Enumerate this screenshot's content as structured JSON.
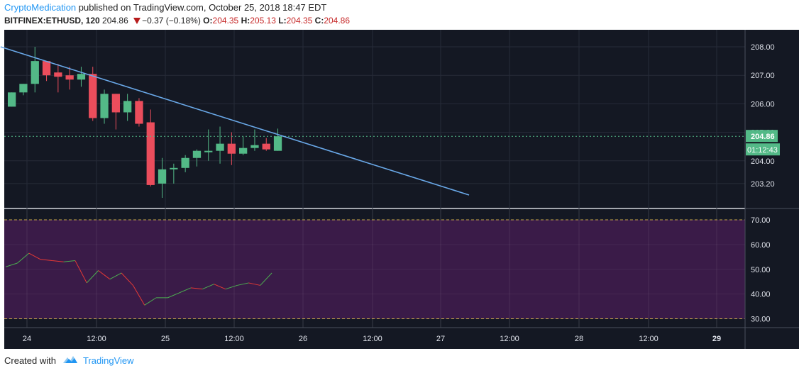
{
  "header": {
    "author": "CryptoMedication",
    "published_text": "published on TradingView.com, October 25, 2018 18:47 EDT",
    "symbol": "BITFINEX:ETHUSD, 120",
    "last": "204.86",
    "change": "−0.37 (−0.18%)",
    "o_label": "O:",
    "o_value": "204.35",
    "h_label": "H:",
    "h_value": "205.13",
    "l_label": "L:",
    "l_value": "204.35",
    "c_label": "C:",
    "c_value": "204.86"
  },
  "footer": {
    "created_with": "Created with",
    "brand": "TradingView"
  },
  "colors": {
    "background": "#141823",
    "up": "#53b987",
    "down": "#eb4d5c",
    "trendline": "#6aa9e9",
    "rsi_band": "#3a1b48",
    "rsi_line_up": "#4caf50",
    "rsi_line_down": "#e53935",
    "price_tag": "#53b987"
  },
  "chart_data": [
    {
      "type": "candlestick",
      "y_axis_ticks": [
        "208.00",
        "207.00",
        "206.00",
        "205.00",
        "204.00",
        "203.20"
      ],
      "ylim": [
        202.6,
        208.2
      ],
      "current_price_label": "204.86",
      "countdown_label": "01:12:43",
      "x_tick_labels": [
        "24",
        "12:00",
        "25",
        "12:00",
        "26",
        "12:00",
        "27",
        "12:00",
        "28",
        "12:00",
        "29"
      ],
      "x_tick_bold": [
        false,
        false,
        false,
        false,
        false,
        false,
        false,
        false,
        false,
        false,
        true
      ],
      "candles": [
        {
          "o": 205.9,
          "h": 206.4,
          "l": 205.9,
          "c": 206.4
        },
        {
          "o": 206.4,
          "h": 206.7,
          "l": 206.3,
          "c": 206.7
        },
        {
          "o": 206.7,
          "h": 208.0,
          "l": 206.4,
          "c": 207.5
        },
        {
          "o": 207.5,
          "h": 207.5,
          "l": 206.8,
          "c": 207.0
        },
        {
          "o": 207.1,
          "h": 207.4,
          "l": 206.4,
          "c": 206.95
        },
        {
          "o": 207.0,
          "h": 207.3,
          "l": 206.5,
          "c": 206.85
        },
        {
          "o": 206.85,
          "h": 207.3,
          "l": 206.6,
          "c": 207.05
        },
        {
          "o": 207.05,
          "h": 207.3,
          "l": 205.4,
          "c": 205.5
        },
        {
          "o": 205.5,
          "h": 206.5,
          "l": 205.3,
          "c": 206.35
        },
        {
          "o": 206.35,
          "h": 206.35,
          "l": 205.1,
          "c": 205.7
        },
        {
          "o": 205.7,
          "h": 206.35,
          "l": 205.4,
          "c": 206.1
        },
        {
          "o": 206.1,
          "h": 206.2,
          "l": 205.2,
          "c": 205.3
        },
        {
          "o": 205.35,
          "h": 205.8,
          "l": 203.1,
          "c": 203.15
        },
        {
          "o": 203.2,
          "h": 204.1,
          "l": 202.7,
          "c": 203.7
        },
        {
          "o": 203.7,
          "h": 203.9,
          "l": 203.2,
          "c": 203.75
        },
        {
          "o": 203.75,
          "h": 204.2,
          "l": 203.6,
          "c": 204.1
        },
        {
          "o": 204.1,
          "h": 204.4,
          "l": 203.8,
          "c": 204.35
        },
        {
          "o": 204.35,
          "h": 205.1,
          "l": 204.0,
          "c": 204.35
        },
        {
          "o": 204.35,
          "h": 205.2,
          "l": 203.9,
          "c": 204.6
        },
        {
          "o": 204.6,
          "h": 205.0,
          "l": 203.85,
          "c": 204.25
        },
        {
          "o": 204.25,
          "h": 204.85,
          "l": 204.2,
          "c": 204.45
        },
        {
          "o": 204.45,
          "h": 205.1,
          "l": 204.35,
          "c": 204.55
        },
        {
          "o": 204.6,
          "h": 204.8,
          "l": 204.35,
          "c": 204.4
        },
        {
          "o": 204.35,
          "h": 205.13,
          "l": 204.35,
          "c": 204.86
        }
      ],
      "trendline": {
        "start": {
          "bar": -0.5,
          "price": 208.0
        },
        "end": {
          "bar": 40,
          "price": 202.8
        }
      }
    },
    {
      "type": "line",
      "indicator": "RSI",
      "y_axis_ticks": [
        "70.00",
        "60.00",
        "50.00",
        "40.00",
        "30.00"
      ],
      "ylim": [
        27,
        72
      ],
      "overbought": 70,
      "oversold": 30,
      "values": [
        51,
        52.5,
        56.5,
        54,
        53.5,
        53,
        53.5,
        44.5,
        49.5,
        46,
        48.5,
        43.5,
        35.5,
        38.5,
        38.5,
        40.5,
        42.5,
        42,
        44,
        42,
        43.5,
        44.5,
        43.5,
        48.5
      ]
    }
  ]
}
